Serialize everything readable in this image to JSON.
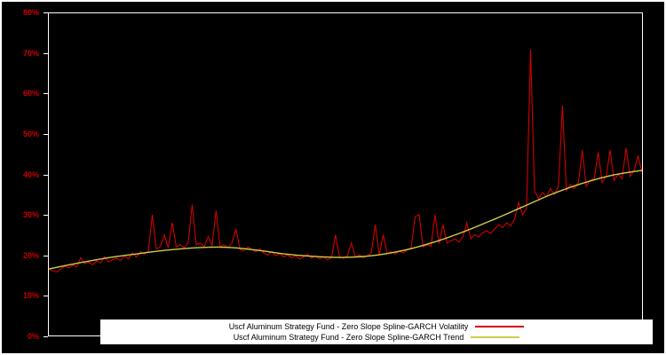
{
  "figure": {
    "background": "#000000",
    "frame_color": "#ffffff",
    "plot_border_color": "#ffffff",
    "axis_label_color": "#cc0000"
  },
  "y_axis": {
    "ticks": [
      "0%",
      "10%",
      "20%",
      "30%",
      "40%",
      "50%",
      "60%",
      "70%",
      "80%"
    ],
    "min": 0,
    "max": 80,
    "step": 10
  },
  "legend": {
    "items": [
      {
        "label": "Uscf Aluminum Strategy Fund - Zero Slope Spline-GARCH Volatility",
        "color": "#d40000"
      },
      {
        "label": "Uscf Aluminum Strategy Fund - Zero Slope Spline-GARCH Trend",
        "color": "#cdcd4a"
      }
    ]
  },
  "chart_data": {
    "type": "line",
    "title": "",
    "xlabel": "",
    "ylabel": "",
    "ylim": [
      0,
      80
    ],
    "y_tick_step": 10,
    "grid": false,
    "legend_position": "bottom-center",
    "series": [
      {
        "name": "Uscf Aluminum Strategy Fund - Zero Slope Spline-GARCH Volatility",
        "color": "#d40000",
        "style": "jagged",
        "x_range": [
          0,
          1
        ],
        "values": [
          16.5,
          16.0,
          15.8,
          16.5,
          17.2,
          16.8,
          17.5,
          17.0,
          19.3,
          17.8,
          18.2,
          17.6,
          18.5,
          18.0,
          19.5,
          18.3,
          18.8,
          19.2,
          18.6,
          19.8,
          19.0,
          20.5,
          19.5,
          20.8,
          20.2,
          21.0,
          30.0,
          21.5,
          22.0,
          25.0,
          21.8,
          28.0,
          22.0,
          22.5,
          21.8,
          23.0,
          32.5,
          22.5,
          23.0,
          22.0,
          24.5,
          22.3,
          31.0,
          22.0,
          22.5,
          21.8,
          23.0,
          26.5,
          21.5,
          21.0,
          22.0,
          21.3,
          20.8,
          21.5,
          20.5,
          20.0,
          20.8,
          19.8,
          20.3,
          19.5,
          20.0,
          19.3,
          19.8,
          19.0,
          19.5,
          20.2,
          19.2,
          19.8,
          19.0,
          19.5,
          18.8,
          19.3,
          25.0,
          19.5,
          19.2,
          19.8,
          23.0,
          19.5,
          20.0,
          19.3,
          19.8,
          20.5,
          27.5,
          20.0,
          25.0,
          20.3,
          20.8,
          20.2,
          21.0,
          20.5,
          21.2,
          21.8,
          29.5,
          30.0,
          22.0,
          22.5,
          22.2,
          30.0,
          22.8,
          27.5,
          23.0,
          23.5,
          24.0,
          23.2,
          24.5,
          28.0,
          24.0,
          25.0,
          24.5,
          25.5,
          26.0,
          25.3,
          26.5,
          27.5,
          26.8,
          28.0,
          27.2,
          29.0,
          33.0,
          30.0,
          31.5,
          71.0,
          36.0,
          34.0,
          35.5,
          34.5,
          36.5,
          35.0,
          37.0,
          57.0,
          36.0,
          37.5,
          36.5,
          38.0,
          46.0,
          37.0,
          38.5,
          39.0,
          45.5,
          38.0,
          39.5,
          46.0,
          38.5,
          40.0,
          39.0,
          46.5,
          39.5,
          41.0,
          44.5,
          40.5
        ]
      },
      {
        "name": "Uscf Aluminum Strategy Fund - Zero Slope Spline-GARCH Trend",
        "color": "#cdcd4a",
        "style": "smooth",
        "points": [
          [
            0.0,
            16.5
          ],
          [
            0.05,
            18.0
          ],
          [
            0.1,
            19.3
          ],
          [
            0.15,
            20.3
          ],
          [
            0.2,
            21.2
          ],
          [
            0.25,
            21.8
          ],
          [
            0.3,
            21.9
          ],
          [
            0.35,
            21.2
          ],
          [
            0.4,
            20.2
          ],
          [
            0.45,
            19.6
          ],
          [
            0.5,
            19.4
          ],
          [
            0.55,
            19.9
          ],
          [
            0.6,
            21.2
          ],
          [
            0.65,
            23.2
          ],
          [
            0.7,
            25.8
          ],
          [
            0.75,
            28.8
          ],
          [
            0.8,
            32.0
          ],
          [
            0.85,
            35.2
          ],
          [
            0.9,
            37.8
          ],
          [
            0.95,
            39.8
          ],
          [
            1.0,
            41.0
          ]
        ]
      }
    ]
  }
}
